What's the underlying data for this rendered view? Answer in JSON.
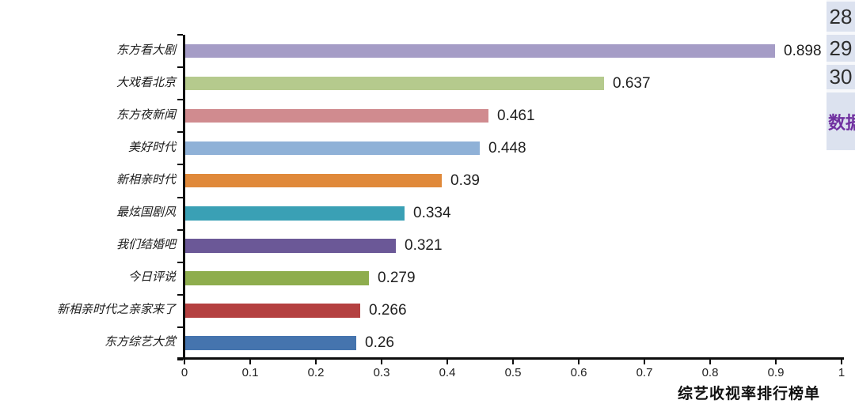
{
  "chart_data": {
    "type": "bar",
    "orientation": "horizontal",
    "title": "综艺收视率排行榜单",
    "categories": [
      "东方看大剧",
      "大戏看北京",
      "东方夜新闻",
      "美好时代",
      "新相亲时代",
      "最炫国剧风",
      "我们结婚吧",
      "今日评说",
      "新相亲时代之亲家来了",
      "东方综艺大赏"
    ],
    "values": [
      0.898,
      0.637,
      0.461,
      0.448,
      0.39,
      0.334,
      0.321,
      0.279,
      0.266,
      0.26
    ],
    "value_labels": [
      "0.898",
      "0.637",
      "0.461",
      "0.448",
      "0.39",
      "0.334",
      "0.321",
      "0.279",
      "0.266",
      "0.26"
    ],
    "bar_colors": [
      "#a59cc6",
      "#b5ca8d",
      "#d08b8f",
      "#8fb1d7",
      "#e0893a",
      "#3aa0b5",
      "#6b5897",
      "#8ead4d",
      "#b44040",
      "#4574ae"
    ],
    "xlim": [
      0,
      1
    ],
    "x_ticks": [
      "0",
      "0.1",
      "0.2",
      "0.3",
      "0.4",
      "0.5",
      "0.6",
      "0.7",
      "0.8",
      "0.9",
      "1"
    ],
    "grid": false,
    "data_labels": true,
    "legend": "none"
  },
  "side_panel": {
    "row_numbers": [
      "28",
      "29",
      "30"
    ],
    "cell_text": "数据",
    "cell_text_color": "#7030a0",
    "background": "#dce2ef"
  }
}
